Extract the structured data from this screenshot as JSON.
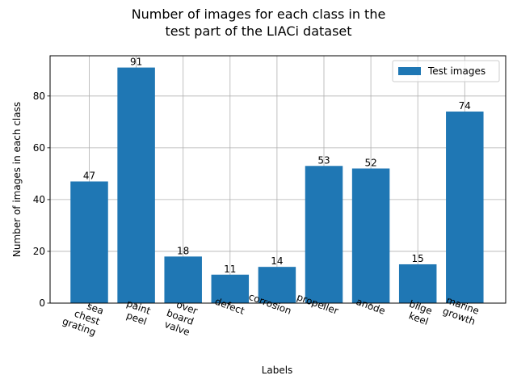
{
  "chart_data": {
    "type": "bar",
    "title_lines": [
      "Number of images for each class in the",
      "test part of the LIACi dataset"
    ],
    "xlabel": "Labels",
    "ylabel": "Number of images in each class",
    "categories": [
      [
        "sea",
        "chest",
        "grating"
      ],
      [
        "paint",
        "peel"
      ],
      [
        "over",
        "board",
        "valve"
      ],
      [
        "defect"
      ],
      [
        "corrosion"
      ],
      [
        "propeller"
      ],
      [
        "anode"
      ],
      [
        "bilge",
        "keel"
      ],
      [
        "marine",
        "growth"
      ]
    ],
    "series": [
      {
        "name": "Test images",
        "values": [
          47,
          91,
          18,
          11,
          14,
          53,
          52,
          15,
          74
        ],
        "color": "#1f77b4"
      }
    ],
    "ylim": [
      0,
      95.55
    ],
    "yticks": [
      0,
      20,
      40,
      60,
      80
    ],
    "grid": true,
    "legend_position": "top-right"
  }
}
